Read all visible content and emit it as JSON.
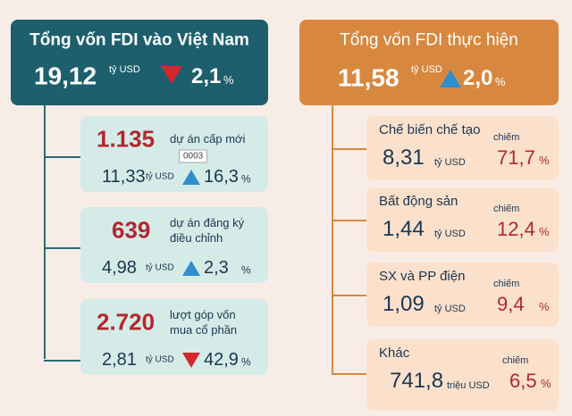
{
  "left": {
    "title": "Tổng vốn FDI vào Việt Nam",
    "amount": "19,12",
    "unit": "tỷ USD",
    "change": "2,1",
    "change_unit": "%",
    "direction": "down",
    "items": [
      {
        "count": "1.135",
        "label_lines": [
          "dự án cấp mới"
        ],
        "amount": "11,33",
        "unit": "tỷ USD",
        "change": "16,3",
        "change_unit": "%",
        "direction": "up"
      },
      {
        "count": "639",
        "label_lines": [
          "dự án đăng ký",
          "điều chỉnh"
        ],
        "amount": "4,98",
        "unit": "tỷ USD",
        "change": "2,3",
        "change_unit": "%",
        "direction": "up"
      },
      {
        "count": "2.720",
        "label_lines": [
          "lượt góp vốn",
          "mua cổ phần"
        ],
        "amount": "2,81",
        "unit": "tỷ USD",
        "change": "42,9",
        "change_unit": "%",
        "direction": "down"
      }
    ]
  },
  "overlay_label": "0003",
  "right": {
    "title": "Tổng vốn FDI thực hiện",
    "amount": "11,58",
    "unit": "tỷ USD",
    "change": "2,0",
    "change_unit": "%",
    "direction": "up",
    "items": [
      {
        "name": "Chế biến chế tạo",
        "amount": "8,31",
        "unit": "tỷ USD",
        "share_label": "chiếm",
        "share": "71,7",
        "share_unit": "%"
      },
      {
        "name": "Bất động sản",
        "amount": "1,44",
        "unit": "tỷ USD",
        "share_label": "chiếm",
        "share": "12,4",
        "share_unit": "%"
      },
      {
        "name": "SX và PP điện",
        "amount": "1,09",
        "unit": "tỷ USD",
        "share_label": "chiếm",
        "share": "9,4",
        "share_unit": "%"
      },
      {
        "name": "Khác",
        "amount": "741,8",
        "unit": "triệu USD",
        "share_label": "chiếm",
        "share": "6,5",
        "share_unit": "%"
      }
    ]
  }
}
